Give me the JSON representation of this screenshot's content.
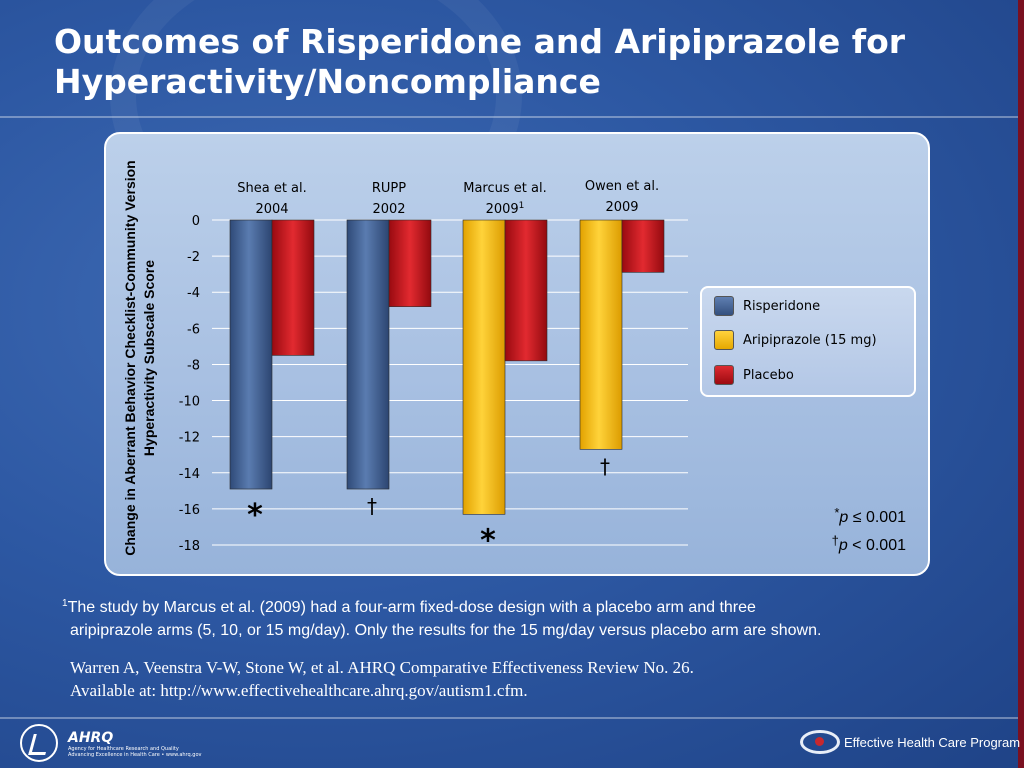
{
  "slide": {
    "title": "Outcomes of Risperidone and Aripiprazole for Hyperactivity/Noncompliance"
  },
  "chart_data": {
    "type": "bar",
    "ylabel": "Change in Aberrant Behavior Checklist-Community Version Hyperactivity Subscale Score",
    "ylim": [
      -18,
      0
    ],
    "yticks": [
      0,
      -2,
      -4,
      -6,
      -8,
      -10,
      -12,
      -14,
      -16,
      -18
    ],
    "grid": true,
    "legend_position": "right",
    "categories": [
      {
        "label_line1": "Shea et al.",
        "label_line2": "2004",
        "sup": ""
      },
      {
        "label_line1": "RUPP",
        "label_line2": "2002",
        "sup": ""
      },
      {
        "label_line1": "Marcus et al.",
        "label_line2": "2009",
        "sup": "1"
      },
      {
        "label_line1": "Owen et al.",
        "label_line2": "2009",
        "sup": ""
      }
    ],
    "series": [
      {
        "name": "Risperidone",
        "color": "#3d5a8c",
        "values": [
          -14.9,
          -14.9,
          null,
          null
        ]
      },
      {
        "name": "Aripiprazole (15 mg)",
        "color": "#f3b400",
        "values": [
          null,
          null,
          -16.3,
          -12.7
        ]
      },
      {
        "name": "Placebo",
        "color": "#c01018",
        "values": [
          -7.5,
          -4.8,
          -7.8,
          -2.9
        ]
      }
    ],
    "annotations": [
      {
        "text": "*",
        "category": 0
      },
      {
        "text": "†",
        "category": 1
      },
      {
        "text": "*",
        "category": 2
      },
      {
        "text": "†",
        "category": 3
      }
    ]
  },
  "significance": [
    {
      "symbol": "*",
      "p": "p",
      "rel": "≤ 0.001"
    },
    {
      "symbol": "†",
      "p": "p",
      "rel": "< 0.001"
    }
  ],
  "footnote": {
    "marker": "1",
    "line1": "The study by Marcus et al. (2009) had a four-arm fixed-dose design with a placebo arm  and three",
    "line2": "aripiprazole arms (5, 10, or 15 mg/day). Only the results for the 15 mg/day versus  placebo arm are shown."
  },
  "citation": {
    "line1": "Warren A, Veenstra V-W, Stone W, et al. AHRQ Comparative Effectiveness Review No. 26.",
    "line2": "Available at:  http://www.effectivehealthcare.ahrq.gov/autism1.cfm."
  },
  "footer": {
    "ahrq_mark": "AHRQ",
    "ahrq_tagline1": "Agency for Healthcare Research and Quality",
    "ahrq_tagline2": "Advancing Excellence in Health Care • www.ahrq.gov",
    "ehc_label": "Effective Health Care Program"
  }
}
